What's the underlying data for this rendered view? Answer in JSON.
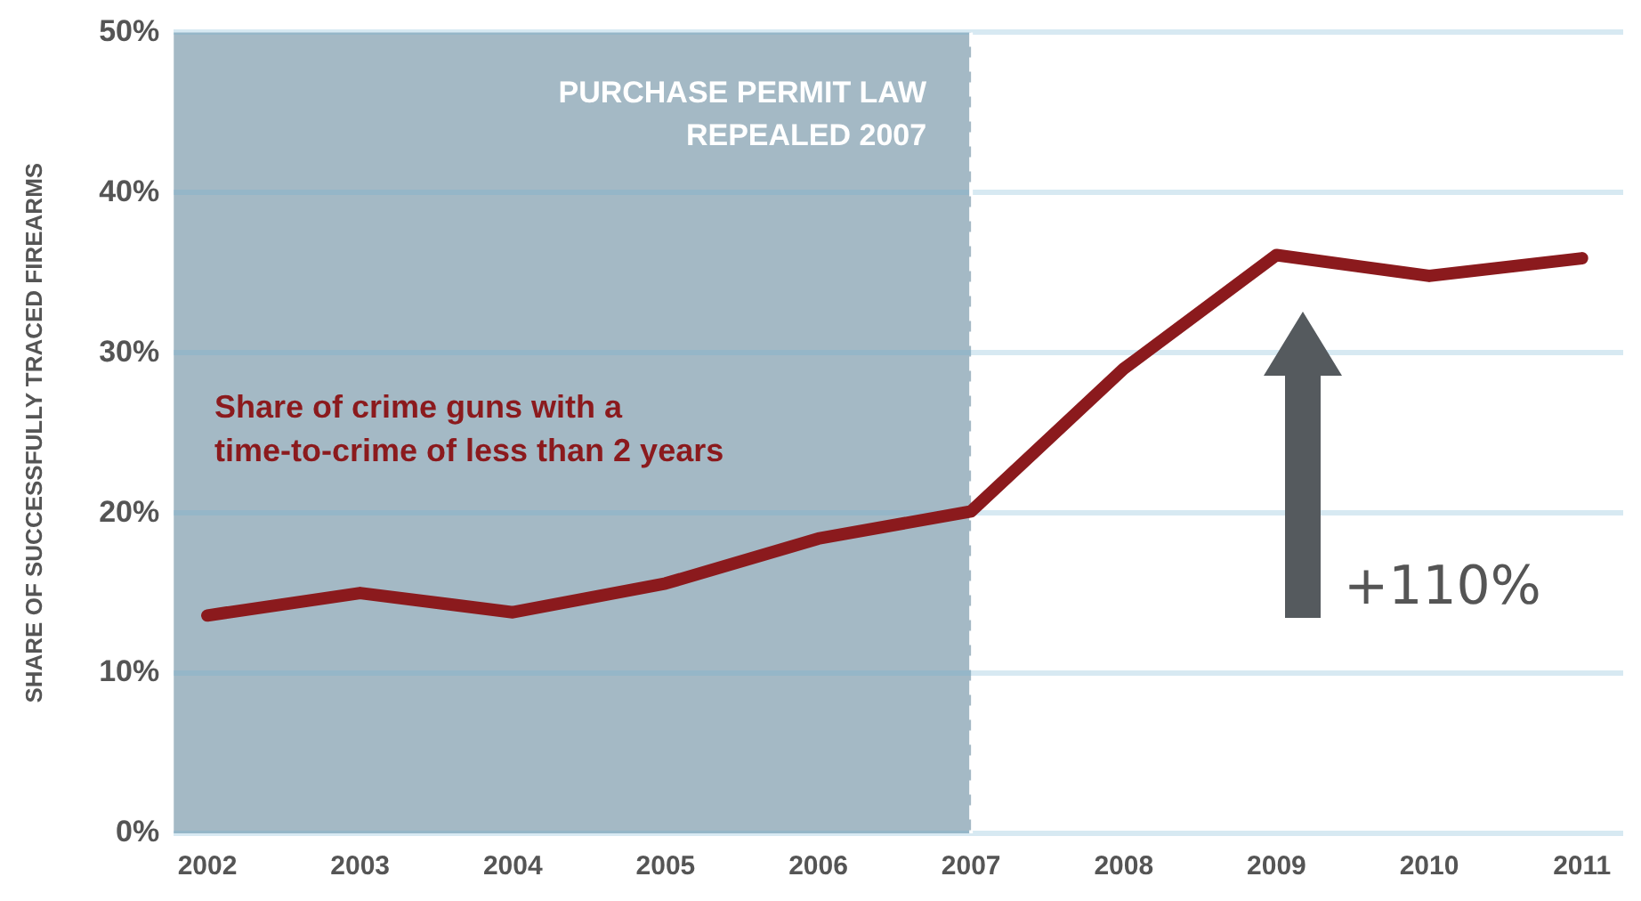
{
  "chart_data": {
    "type": "line",
    "ylabel": "SHARE OF SUCCESSFULLY TRACED FIREARMS",
    "x": [
      2002,
      2003,
      2004,
      2005,
      2006,
      2007,
      2008,
      2009,
      2010,
      2011
    ],
    "series": [
      {
        "name": "Share of crime guns with a time-to-crime of less than 2 years",
        "color": "#8b1a1d",
        "values": [
          13.6,
          15.0,
          13.8,
          15.6,
          18.4,
          20.1,
          29.0,
          36.1,
          34.8,
          35.9
        ]
      }
    ],
    "xlim": [
      2001.78,
      2011.27
    ],
    "xticks": [
      2002,
      2003,
      2004,
      2005,
      2006,
      2007,
      2008,
      2009,
      2010,
      2011
    ],
    "ylim": [
      0,
      50
    ],
    "yticks": [
      {
        "value": 0,
        "label": "0%"
      },
      {
        "value": 10,
        "label": "10%"
      },
      {
        "value": 20,
        "label": "20%"
      },
      {
        "value": 30,
        "label": "30%"
      },
      {
        "value": 40,
        "label": "40%"
      },
      {
        "value": 50,
        "label": "50%"
      }
    ],
    "bands": [
      {
        "axis": "x",
        "from": 2001.78,
        "to": 2007,
        "label": "PURCHASE PERMIT LAW REPEALED 2007",
        "color": "#a4b9c5"
      }
    ],
    "ref_lines": [
      {
        "axis": "x",
        "value": 2007,
        "color": "#ffffff",
        "line_style": "dashed"
      }
    ],
    "annotations": [
      "+110%"
    ],
    "grid": "y",
    "legend": false,
    "marker": "none",
    "line_style": "solid"
  }
}
